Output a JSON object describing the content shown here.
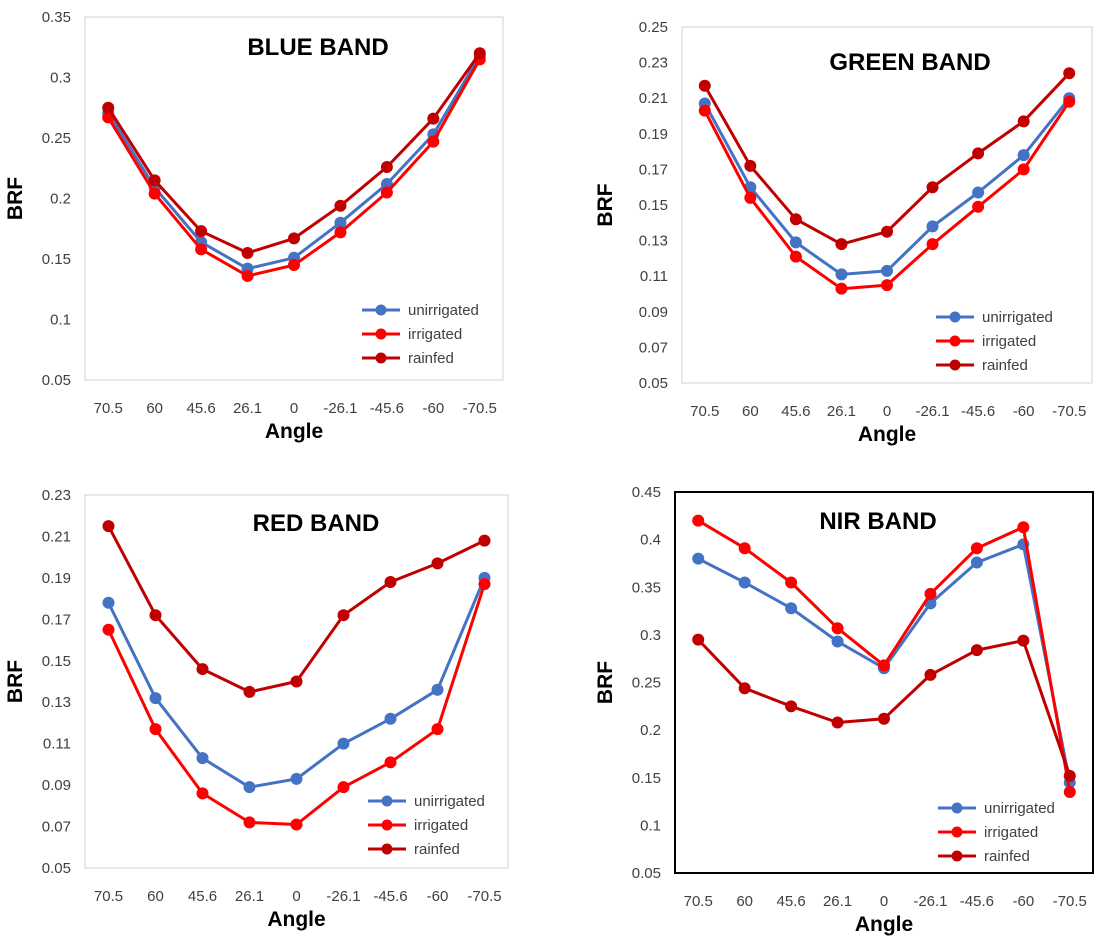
{
  "chart_data": [
    {
      "type": "line",
      "title": "BLUE BAND",
      "xlabel": "Angle",
      "ylabel": "BRF",
      "ylim": [
        0.05,
        0.35
      ],
      "yticks": [
        "0.05",
        "0.1",
        "0.15",
        "0.2",
        "0.25",
        "0.3",
        "0.35"
      ],
      "categories": [
        "70.5",
        "60",
        "45.6",
        "26.1",
        "0",
        "-26.1",
        "-45.6",
        "-60",
        "-70.5"
      ],
      "legend_position": "bottom-right",
      "frame": false,
      "series": [
        {
          "name": "unirrigated",
          "color": "#4472C4",
          "values": [
            0.271,
            0.209,
            0.164,
            0.142,
            0.151,
            0.18,
            0.212,
            0.253,
            0.318
          ]
        },
        {
          "name": "irrigated",
          "color": "#FF0000",
          "values": [
            0.267,
            0.204,
            0.158,
            0.136,
            0.145,
            0.172,
            0.205,
            0.247,
            0.315
          ]
        },
        {
          "name": "rainfed",
          "color": "#C00000",
          "values": [
            0.275,
            0.215,
            0.173,
            0.155,
            0.167,
            0.194,
            0.226,
            0.266,
            0.32
          ]
        }
      ]
    },
    {
      "type": "line",
      "title": "GREEN BAND",
      "xlabel": "Angle",
      "ylabel": "BRF",
      "ylim": [
        0.05,
        0.25
      ],
      "yticks": [
        "0.05",
        "0.07",
        "0.09",
        "0.11",
        "0.13",
        "0.15",
        "0.17",
        "0.19",
        "0.21",
        "0.23",
        "0.25"
      ],
      "categories": [
        "70.5",
        "60",
        "45.6",
        "26.1",
        "0",
        "-26.1",
        "-45.6",
        "-60",
        "-70.5"
      ],
      "legend_position": "bottom-right",
      "frame": false,
      "series": [
        {
          "name": "unirrigated",
          "color": "#4472C4",
          "values": [
            0.207,
            0.16,
            0.129,
            0.111,
            0.113,
            0.138,
            0.157,
            0.178,
            0.21
          ]
        },
        {
          "name": "irrigated",
          "color": "#FF0000",
          "values": [
            0.203,
            0.154,
            0.121,
            0.103,
            0.105,
            0.128,
            0.149,
            0.17,
            0.208
          ]
        },
        {
          "name": "rainfed",
          "color": "#C00000",
          "values": [
            0.217,
            0.172,
            0.142,
            0.128,
            0.135,
            0.16,
            0.179,
            0.197,
            0.224
          ]
        }
      ]
    },
    {
      "type": "line",
      "title": "RED BAND",
      "xlabel": "Angle",
      "ylabel": "BRF",
      "ylim": [
        0.05,
        0.23
      ],
      "yticks": [
        "0.05",
        "0.07",
        "0.09",
        "0.11",
        "0.13",
        "0.15",
        "0.17",
        "0.19",
        "0.21",
        "0.23"
      ],
      "categories": [
        "70.5",
        "60",
        "45.6",
        "26.1",
        "0",
        "-26.1",
        "-45.6",
        "-60",
        "-70.5"
      ],
      "legend_position": "bottom-right",
      "frame": false,
      "series": [
        {
          "name": "unirrigated",
          "color": "#4472C4",
          "values": [
            0.178,
            0.132,
            0.103,
            0.089,
            0.093,
            0.11,
            0.122,
            0.136,
            0.19
          ]
        },
        {
          "name": "irrigated",
          "color": "#FF0000",
          "values": [
            0.165,
            0.117,
            0.086,
            0.072,
            0.071,
            0.089,
            0.101,
            0.117,
            0.187
          ]
        },
        {
          "name": "rainfed",
          "color": "#C00000",
          "values": [
            0.215,
            0.172,
            0.146,
            0.135,
            0.14,
            0.172,
            0.188,
            0.197,
            0.208
          ]
        }
      ]
    },
    {
      "type": "line",
      "title": "NIR BAND",
      "xlabel": "Angle",
      "ylabel": "BRF",
      "ylim": [
        0.05,
        0.45
      ],
      "yticks": [
        "0.05",
        "0.1",
        "0.15",
        "0.2",
        "0.25",
        "0.3",
        "0.35",
        "0.4",
        "0.45"
      ],
      "categories": [
        "70.5",
        "60",
        "45.6",
        "26.1",
        "0",
        "-26.1",
        "-45.6",
        "-60",
        "-70.5"
      ],
      "legend_position": "bottom-right",
      "frame": true,
      "series": [
        {
          "name": "unirrigated",
          "color": "#4472C4",
          "values": [
            0.38,
            0.355,
            0.328,
            0.293,
            0.265,
            0.333,
            0.376,
            0.395,
            0.145
          ]
        },
        {
          "name": "irrigated",
          "color": "#FF0000",
          "values": [
            0.42,
            0.391,
            0.355,
            0.307,
            0.268,
            0.343,
            0.391,
            0.413,
            0.135
          ]
        },
        {
          "name": "rainfed",
          "color": "#C00000",
          "values": [
            0.295,
            0.244,
            0.225,
            0.208,
            0.212,
            0.258,
            0.284,
            0.294,
            0.152
          ]
        }
      ]
    }
  ]
}
